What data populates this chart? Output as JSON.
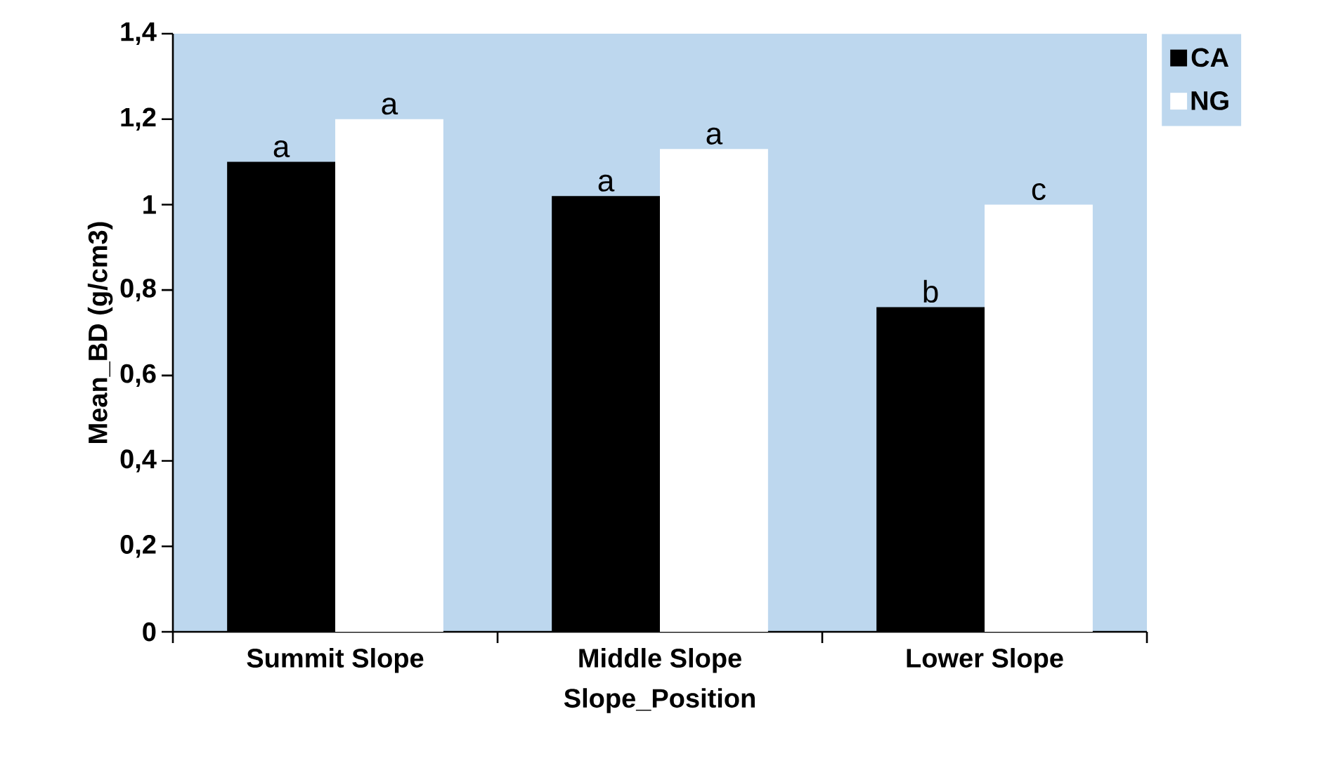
{
  "chart_data": {
    "type": "bar",
    "xlabel": "Slope_Position",
    "ylabel": "Mean_BD (g/cm3)",
    "categories": [
      "Summit Slope",
      "Middle Slope",
      "Lower Slope"
    ],
    "series": [
      {
        "name": "CA",
        "color": "#000000",
        "values": [
          1.1,
          1.02,
          0.76
        ],
        "value_labels": [
          "a",
          "a",
          "b"
        ]
      },
      {
        "name": "NG",
        "color": "#ffffff",
        "values": [
          1.2,
          1.13,
          1.0
        ],
        "value_labels": [
          "a",
          "a",
          "c"
        ]
      }
    ],
    "ylim": [
      0,
      1.4
    ],
    "yticks": [
      0,
      {
        "value": 0.2,
        "label": "0,2"
      },
      {
        "value": 0.4,
        "label": "0,4"
      },
      {
        "value": 0.6,
        "label": "0,6"
      },
      {
        "value": 0.8,
        "label": "0,8"
      },
      1,
      {
        "value": 1.2,
        "label": "1,2"
      },
      {
        "value": 1.4,
        "label": "1,4"
      }
    ],
    "grid": false,
    "legend": "top right"
  }
}
